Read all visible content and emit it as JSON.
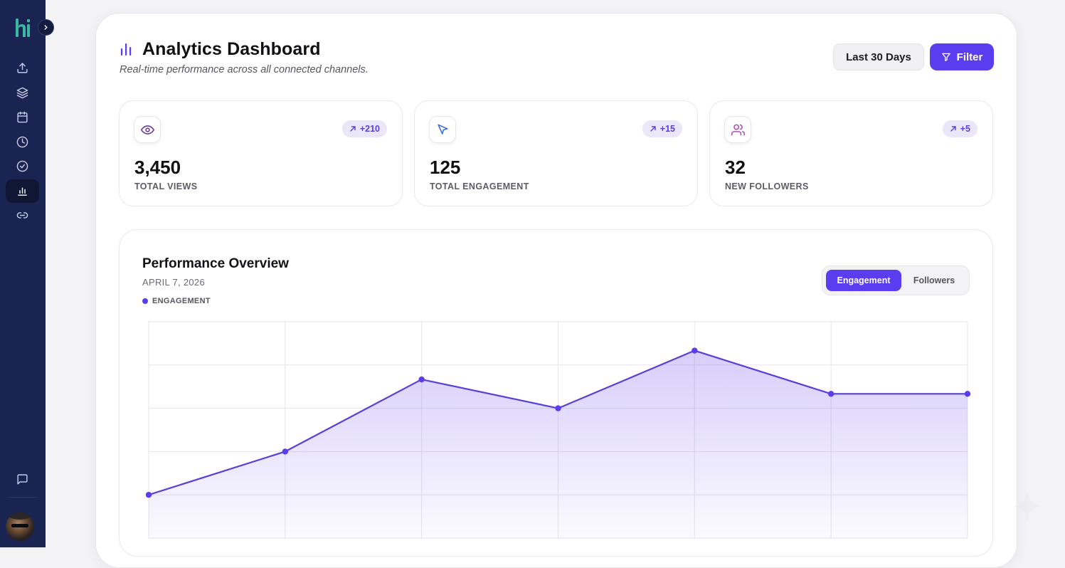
{
  "app": {
    "logo_text": "hi"
  },
  "sidebar": {
    "items": [
      {
        "name": "upload",
        "icon": "upload-icon"
      },
      {
        "name": "layers",
        "icon": "layers-icon"
      },
      {
        "name": "calendar",
        "icon": "calendar-icon"
      },
      {
        "name": "history",
        "icon": "clock-icon"
      },
      {
        "name": "tasks",
        "icon": "check-circle-icon"
      },
      {
        "name": "analytics",
        "icon": "bar-chart-icon",
        "active": true
      },
      {
        "name": "links",
        "icon": "link-icon"
      }
    ],
    "bottom": {
      "messages_icon": "message-icon",
      "avatar": "user-avatar"
    }
  },
  "header": {
    "title": "Analytics Dashboard",
    "subtitle": "Real-time performance across all connected channels.",
    "range_label": "Last 30 Days",
    "filter_label": "Filter"
  },
  "stats": [
    {
      "icon": "eye-icon",
      "value": "3,450",
      "label": "TOTAL VIEWS",
      "delta": "+210"
    },
    {
      "icon": "cursor-icon",
      "value": "125",
      "label": "TOTAL ENGAGEMENT",
      "delta": "+15"
    },
    {
      "icon": "users-icon",
      "value": "32",
      "label": "NEW FOLLOWERS",
      "delta": "+5"
    }
  ],
  "performance": {
    "title": "Performance Overview",
    "date": "APRIL 7, 2026",
    "legend_label": "ENGAGEMENT",
    "toggle": {
      "active": "Engagement",
      "inactive": "Followers"
    }
  },
  "colors": {
    "accent": "#5b3df0",
    "sidebar_bg": "#1a2452",
    "logo": "#3bb8a4"
  },
  "chart_data": {
    "type": "area",
    "series": [
      {
        "name": "ENGAGEMENT",
        "values": [
          6,
          12,
          22,
          18,
          26,
          20,
          20
        ]
      }
    ],
    "ylim": [
      0,
      30
    ],
    "grid": true
  }
}
